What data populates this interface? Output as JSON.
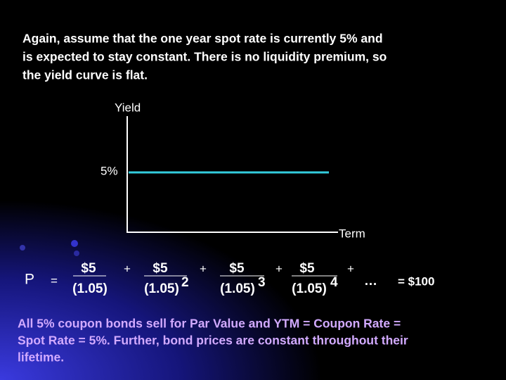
{
  "intro": {
    "lines": [
      "Again, assume that the one year spot rate is currently 5% and",
      "is expected to stay constant. There is no liquidity premium, so",
      "the yield curve is flat."
    ]
  },
  "diagram": {
    "y_label": "Yield",
    "x_label": "Term",
    "level_label": "5%"
  },
  "formula": {
    "lhs": "P",
    "equals": "=",
    "plus": "+",
    "terms": [
      {
        "numerator": "$5",
        "denominator": "(1.05)"
      },
      {
        "numerator": "$5",
        "denominator": "(1.05)",
        "exponent": "2"
      },
      {
        "numerator": "$5",
        "denominator": "(1.05)",
        "exponent": "3"
      },
      {
        "numerator": "$5",
        "denominator": "(1.05)",
        "exponent": "4"
      }
    ],
    "ellipsis": "…",
    "result": "= $100"
  },
  "conclusion": {
    "lines": [
      "All 5% coupon bonds sell for Par Value and YTM = Coupon Rate =",
      "Spot Rate = 5%.  Further, bond prices are constant throughout their",
      "lifetime."
    ]
  }
}
